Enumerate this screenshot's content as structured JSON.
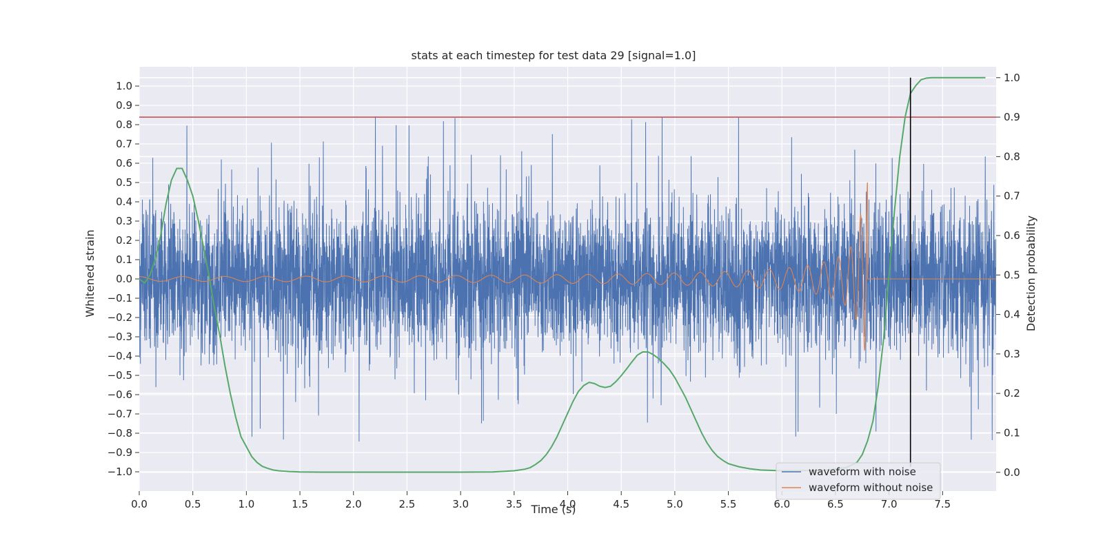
{
  "chart_data": {
    "type": "line",
    "title": "stats at each timestep for test data 29 [signal=1.0]",
    "xlabel": "Time (s)",
    "ylabel": "Whitened strain",
    "y2label": "Detection probability",
    "xlim": [
      0.0,
      8.0
    ],
    "ylim": [
      -1.1,
      1.1
    ],
    "y2lim": [
      -0.0475,
      1.0275
    ],
    "xticks": [
      "0.0",
      "0.5",
      "1.0",
      "1.5",
      "2.0",
      "2.5",
      "3.0",
      "3.5",
      "4.0",
      "4.5",
      "5.0",
      "5.5",
      "6.0",
      "6.5",
      "7.0",
      "7.5"
    ],
    "yticks": [
      "1.0",
      "0.9",
      "0.8",
      "0.7",
      "0.6",
      "0.5",
      "0.4",
      "0.3",
      "0.2",
      "0.1",
      "0.0",
      "−0.1",
      "−0.2",
      "−0.3",
      "−0.4",
      "−0.5",
      "−0.6",
      "−0.7",
      "−0.8",
      "−0.9",
      "−1.0"
    ],
    "y2ticks": [
      "1.0",
      "0.9",
      "0.8",
      "0.7",
      "0.6",
      "0.5",
      "0.4",
      "0.3",
      "0.2",
      "0.1",
      "0.0"
    ],
    "grid": true,
    "legend_position": "bottom-right",
    "threshold_y2": 0.9,
    "detection_time": 7.2,
    "colors": {
      "noise": "#4c72b0",
      "signal": "#dd8452",
      "probability": "#55a868",
      "threshold": "#c44e52",
      "marker": "#000000",
      "background": "#eaeaf2",
      "grid": "#ffffff"
    },
    "series": [
      {
        "name": "waveform with noise",
        "envelope_peak": 0.94,
        "envelope_trough": -1.0
      },
      {
        "name": "waveform without noise",
        "merger_time": 6.8,
        "peak_strain": 0.52,
        "trough_strain": -0.38
      },
      {
        "t": [
          0.0,
          0.05,
          0.1,
          0.15,
          0.2,
          0.25,
          0.3,
          0.35,
          0.4,
          0.45,
          0.5,
          0.55,
          0.6,
          0.65,
          0.7,
          0.75,
          0.8,
          0.85,
          0.9,
          0.95,
          1.0,
          1.05,
          1.1,
          1.15,
          1.2,
          1.25,
          1.3,
          1.35,
          1.4,
          1.45,
          1.5,
          1.6,
          1.7,
          1.8,
          2.0,
          2.5,
          3.0,
          3.3,
          3.5,
          3.6,
          3.65,
          3.7,
          3.75,
          3.8,
          3.85,
          3.9,
          3.95,
          4.0,
          4.05,
          4.1,
          4.15,
          4.2,
          4.25,
          4.3,
          4.35,
          4.4,
          4.45,
          4.5,
          4.55,
          4.6,
          4.65,
          4.7,
          4.75,
          4.8,
          4.85,
          4.9,
          4.95,
          5.0,
          5.05,
          5.1,
          5.15,
          5.2,
          5.25,
          5.3,
          5.35,
          5.4,
          5.45,
          5.5,
          5.6,
          5.7,
          5.8,
          6.0,
          6.4,
          6.6,
          6.7,
          6.75,
          6.8,
          6.85,
          6.9,
          6.95,
          7.0,
          7.05,
          7.1,
          7.15,
          7.2,
          7.25,
          7.3,
          7.35,
          7.4,
          7.5,
          7.6,
          7.7,
          7.8,
          7.9
        ],
        "p": [
          0.49,
          0.48,
          0.5,
          0.54,
          0.6,
          0.68,
          0.74,
          0.77,
          0.77,
          0.74,
          0.7,
          0.64,
          0.57,
          0.5,
          0.42,
          0.35,
          0.27,
          0.2,
          0.14,
          0.09,
          0.065,
          0.04,
          0.025,
          0.015,
          0.01,
          0.006,
          0.004,
          0.003,
          0.002,
          0.0015,
          0.001,
          0.0008,
          0.0006,
          0.0005,
          0.0004,
          0.0004,
          0.0005,
          0.001,
          0.004,
          0.008,
          0.012,
          0.02,
          0.03,
          0.045,
          0.065,
          0.09,
          0.12,
          0.15,
          0.18,
          0.205,
          0.22,
          0.228,
          0.225,
          0.218,
          0.215,
          0.218,
          0.23,
          0.245,
          0.262,
          0.28,
          0.297,
          0.305,
          0.305,
          0.298,
          0.288,
          0.275,
          0.26,
          0.24,
          0.215,
          0.19,
          0.16,
          0.13,
          0.1,
          0.075,
          0.055,
          0.04,
          0.03,
          0.022,
          0.014,
          0.009,
          0.006,
          0.004,
          0.005,
          0.012,
          0.025,
          0.045,
          0.08,
          0.13,
          0.22,
          0.34,
          0.5,
          0.66,
          0.8,
          0.9,
          0.96,
          0.98,
          0.995,
          0.999,
          1.0,
          1.0,
          1.0,
          1.0,
          1.0,
          1.0
        ]
      }
    ]
  }
}
